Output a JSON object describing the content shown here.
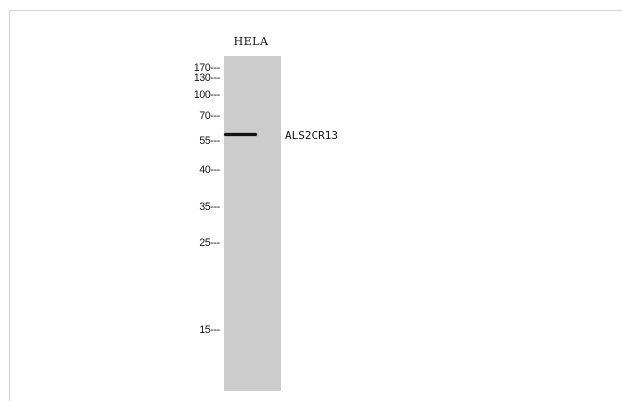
{
  "lane_label": "HELA",
  "band_label": "ALS2CR13",
  "markers": [
    {
      "label": "170",
      "kda": 170
    },
    {
      "label": "130",
      "kda": 130
    },
    {
      "label": "100",
      "kda": 100
    },
    {
      "label": "70",
      "kda": 70
    },
    {
      "label": "55",
      "kda": 55
    },
    {
      "label": "40",
      "kda": 40
    },
    {
      "label": "35",
      "kda": 35
    },
    {
      "label": "25",
      "kda": 25
    },
    {
      "label": "15",
      "kda": 15
    }
  ],
  "colors": {
    "lane": "#cccccc",
    "band": "#141414"
  }
}
